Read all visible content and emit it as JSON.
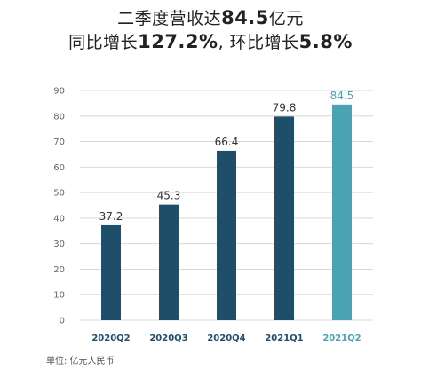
{
  "headline": {
    "line1_prefix": "二季度营收达",
    "line1_value": "84.5",
    "line1_suffix": "亿元",
    "line2_prefix": "同比增长",
    "line2_value1": "127.2%",
    "line2_mid": ", 环比增长",
    "line2_value2": "5.8%"
  },
  "unit_note": "单位: 亿元人民币",
  "colors": {
    "bar_default": "#1f4e6a",
    "bar_highlight": "#4aa3b3",
    "grid": "#d9d9d9",
    "axis_text": "#666666",
    "category_default": "#1f4e6a",
    "category_highlight": "#4aa3b3"
  },
  "chart_data": {
    "type": "bar",
    "categories": [
      "2020Q2",
      "2020Q3",
      "2020Q4",
      "2021Q1",
      "2021Q2"
    ],
    "values": [
      37.2,
      45.3,
      66.4,
      79.8,
      84.5
    ],
    "value_labels": [
      "37.2",
      "45.3",
      "66.4",
      "79.8",
      "84.5"
    ],
    "highlight_index": 4,
    "ylim": [
      0,
      90
    ],
    "yticks": [
      0,
      10,
      20,
      30,
      40,
      50,
      60,
      70,
      80,
      90
    ],
    "grid": true,
    "xlabel": "",
    "ylabel": ""
  }
}
